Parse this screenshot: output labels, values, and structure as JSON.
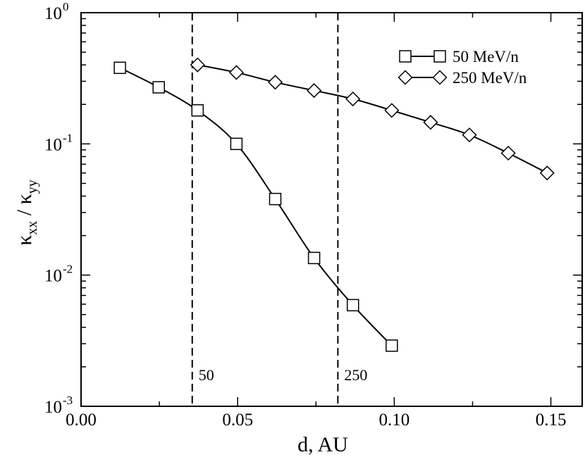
{
  "chart_data": {
    "type": "line",
    "title": "",
    "xlabel": "d, AU",
    "xlim": [
      0.0,
      0.16
    ],
    "ylim": [
      0.001,
      1.0
    ],
    "yscale": "log",
    "grid": false,
    "legend_position": "top-right",
    "x_ticks": [
      {
        "value": 0.0,
        "label": "0.00"
      },
      {
        "value": 0.05,
        "label": "0.05"
      },
      {
        "value": 0.1,
        "label": "0.10"
      },
      {
        "value": 0.15,
        "label": "0.15"
      }
    ],
    "y_ticks": [
      {
        "value": 1.0,
        "base": "10",
        "exp": "0"
      },
      {
        "value": 0.1,
        "base": "10",
        "exp": "-1"
      },
      {
        "value": 0.01,
        "base": "10",
        "exp": "-2"
      },
      {
        "value": 0.001,
        "base": "10",
        "exp": "-3"
      }
    ],
    "ylabel": {
      "num": "κ",
      "num_sub": "xx",
      "sep": " / ",
      "den": "κ",
      "den_sub": "yy"
    },
    "series": [
      {
        "name": "50 MeV/n",
        "marker": "square",
        "x": [
          0.0124,
          0.0248,
          0.0372,
          0.0496,
          0.062,
          0.0744,
          0.0868,
          0.0992
        ],
        "y": [
          0.38,
          0.27,
          0.18,
          0.1,
          0.038,
          0.0135,
          0.0059,
          0.0029
        ]
      },
      {
        "name": "250 MeV/n",
        "marker": "diamond",
        "x": [
          0.0372,
          0.0496,
          0.062,
          0.0744,
          0.0868,
          0.0992,
          0.1116,
          0.124,
          0.1364,
          0.1488
        ],
        "y": [
          0.4,
          0.35,
          0.295,
          0.255,
          0.22,
          0.18,
          0.146,
          0.117,
          0.085,
          0.06
        ]
      }
    ],
    "vlines": [
      {
        "x": 0.0355,
        "label": "50"
      },
      {
        "x": 0.082,
        "label": "250"
      }
    ]
  }
}
